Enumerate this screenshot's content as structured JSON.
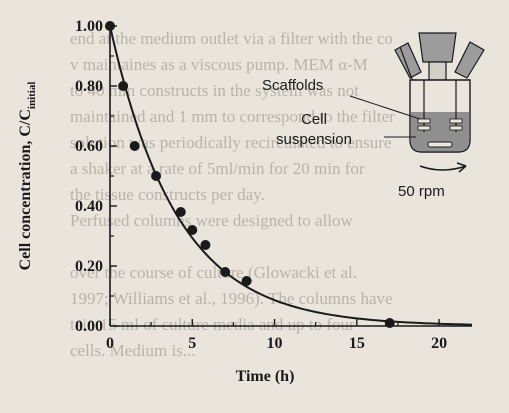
{
  "background_text": [
    "end at the medium outlet via a filter with the co",
    "v maintaines as a viscous pump. MEM α-M",
    "to 40 mm constructs in the system was not",
    "maintained and 1 mm to correspond to the filter",
    "solution was periodically recirculated to ensure",
    "a shaker at a rate of 5ml/min for 20 min for",
    "the tissue constructs per day.",
    "Perfused columns were designed to allow",
    "over the course of culture (Glowacki et al.",
    "1997; Williams et al., 1996). The columns have",
    "tain 15 ml of culture media and up to four",
    "cells. Medium is..."
  ],
  "chart_data": {
    "type": "scatter",
    "xlabel": "Time (h)",
    "ylabel_main": "Cell concentration, C/C",
    "ylabel_sub": "initial",
    "xlim": [
      0,
      22
    ],
    "ylim": [
      0,
      1.0
    ],
    "xticks": [
      0,
      5,
      10,
      15,
      20
    ],
    "yticks": [
      0.0,
      0.2,
      0.4,
      0.6,
      0.8,
      1.0
    ],
    "ytick_labels": [
      "0.00",
      "0.20",
      "0.40",
      "0.60",
      "0.80",
      "1.00"
    ],
    "points": [
      {
        "x": 0,
        "y": 1.0
      },
      {
        "x": 0.8,
        "y": 0.8
      },
      {
        "x": 1.5,
        "y": 0.6
      },
      {
        "x": 2.8,
        "y": 0.5
      },
      {
        "x": 4.3,
        "y": 0.38
      },
      {
        "x": 5.0,
        "y": 0.32
      },
      {
        "x": 5.8,
        "y": 0.27
      },
      {
        "x": 7.0,
        "y": 0.18
      },
      {
        "x": 8.3,
        "y": 0.15
      },
      {
        "x": 17.0,
        "y": 0.01
      }
    ],
    "fit": {
      "model": "exponential decay",
      "a": 1.0,
      "k": 0.245
    }
  },
  "inset": {
    "label_scaffolds": "Scaffolds",
    "label_cell": "Cell",
    "label_suspension": "suspension",
    "label_rpm": "50 rpm"
  },
  "colors": {
    "ink": "#1a1a1a",
    "paper": "#e9e5dd",
    "ghost": "#b9b3a8",
    "flask_fill": "#9c9c9c"
  }
}
